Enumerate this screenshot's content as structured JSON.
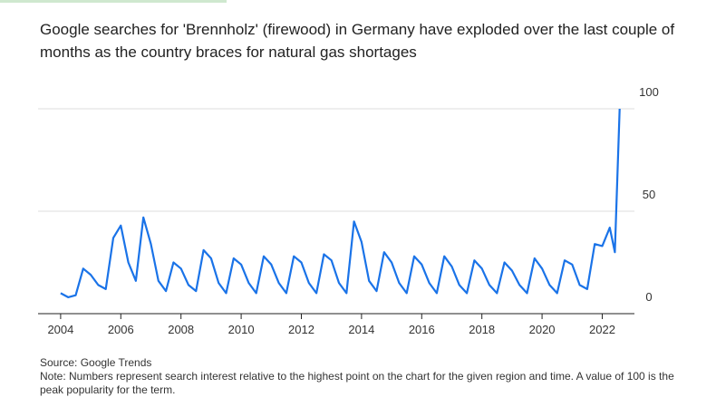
{
  "chart_data": {
    "type": "line",
    "title": "Google searches for 'Brennholz' (firewood) in Germany have exploded over the last couple of months as the country braces for natural gas shortages",
    "source": "Source: Google Trends",
    "note": "Note: Numbers represent search interest relative to the highest point on the chart for the given region and time. A value of 100 is the peak popularity for the term.",
    "x": [
      2004,
      2004.25,
      2004.5,
      2004.75,
      2005,
      2005.25,
      2005.5,
      2005.75,
      2006,
      2006.25,
      2006.5,
      2006.75,
      2007,
      2007.25,
      2007.5,
      2007.75,
      2008,
      2008.25,
      2008.5,
      2008.75,
      2009,
      2009.25,
      2009.5,
      2009.75,
      2010,
      2010.25,
      2010.5,
      2010.75,
      2011,
      2011.25,
      2011.5,
      2011.75,
      2012,
      2012.25,
      2012.5,
      2012.75,
      2013,
      2013.25,
      2013.5,
      2013.75,
      2014,
      2014.25,
      2014.5,
      2014.75,
      2015,
      2015.25,
      2015.5,
      2015.75,
      2016,
      2016.25,
      2016.5,
      2016.75,
      2017,
      2017.25,
      2017.5,
      2017.75,
      2018,
      2018.25,
      2018.5,
      2018.75,
      2019,
      2019.25,
      2019.5,
      2019.75,
      2020,
      2020.25,
      2020.5,
      2020.75,
      2021,
      2021.25,
      2021.5,
      2021.75,
      2022,
      2022.25,
      2022.42,
      2022.58
    ],
    "series": [
      {
        "name": "Brennholz",
        "color": "#1a73e8",
        "values": [
          10,
          8,
          9,
          22,
          19,
          14,
          12,
          37,
          43,
          25,
          16,
          47,
          34,
          16,
          11,
          25,
          22,
          14,
          11,
          31,
          27,
          15,
          10,
          27,
          24,
          15,
          10,
          28,
          24,
          15,
          10,
          28,
          25,
          15,
          10,
          29,
          26,
          15,
          10,
          45,
          35,
          16,
          11,
          30,
          25,
          15,
          10,
          28,
          24,
          15,
          10,
          28,
          23,
          14,
          10,
          26,
          22,
          14,
          10,
          25,
          21,
          14,
          10,
          27,
          22,
          14,
          10,
          26,
          24,
          14,
          12,
          34,
          33,
          42,
          30,
          100
        ]
      }
    ],
    "xlim": [
      2003.25,
      2023.07
    ],
    "xticks": [
      2004,
      2006,
      2008,
      2010,
      2012,
      2014,
      2016,
      2018,
      2020,
      2022
    ],
    "ylim": [
      0,
      100
    ],
    "yticks": [
      0,
      50,
      100
    ],
    "grid": true
  }
}
